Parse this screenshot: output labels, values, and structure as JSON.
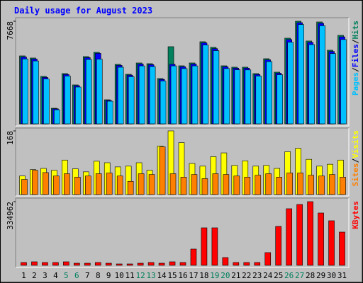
{
  "title": "Daily usage for August 2023",
  "legend_separator": "/",
  "chart_data": [
    {
      "type": "bar",
      "ylim": [
        0,
        7668
      ],
      "yticks": [
        7668
      ],
      "series": [
        {
          "name": "Hits",
          "color": "#00805c",
          "values": [
            5078,
            4920,
            3544,
            1164,
            3756,
            2910,
            5026,
            5343,
            1799,
            4444,
            3703,
            4549,
            4497,
            3386,
            5766,
            4338,
            4549,
            6137,
            5713,
            4338,
            4232,
            4232,
            3756,
            4867,
            3862,
            6401,
            7668,
            6190,
            7616,
            5502,
            6612
          ]
        },
        {
          "name": "Files",
          "color": "#0000ff",
          "values": [
            4990,
            4840,
            3470,
            1120,
            3690,
            2850,
            4950,
            5270,
            1750,
            4370,
            3640,
            4470,
            4420,
            3320,
            4450,
            4260,
            4470,
            6050,
            5620,
            4260,
            4160,
            4160,
            3690,
            4780,
            3790,
            6300,
            7560,
            6090,
            7510,
            5410,
            6500
          ]
        },
        {
          "name": "Pages",
          "color": "#00c0ff",
          "values": [
            4850,
            4700,
            3350,
            1050,
            3570,
            2750,
            4810,
            4830,
            1690,
            4230,
            3520,
            4330,
            4280,
            3200,
            4330,
            4130,
            4330,
            5890,
            5470,
            4130,
            4040,
            4030,
            3570,
            4650,
            3670,
            6100,
            7420,
            5920,
            7330,
            5250,
            6300
          ]
        }
      ]
    },
    {
      "type": "bar",
      "ylim": [
        0,
        168
      ],
      "yticks": [
        168
      ],
      "series": [
        {
          "name": "Visits",
          "color": "#ffff00",
          "values": [
            49,
            66,
            69,
            64,
            91,
            68,
            60,
            88,
            84,
            73,
            75,
            84,
            64,
            128,
            168,
            137,
            82,
            75,
            100,
            110,
            77,
            89,
            75,
            77,
            69,
            113,
            122,
            93,
            75,
            80,
            91
          ]
        },
        {
          "name": "Sites",
          "color": "#ff8000",
          "values": [
            40,
            64,
            58,
            49,
            55,
            46,
            49,
            55,
            57,
            49,
            35,
            55,
            53,
            126,
            55,
            46,
            53,
            42,
            55,
            53,
            49,
            46,
            51,
            55,
            46,
            57,
            57,
            51,
            49,
            53,
            46
          ]
        }
      ]
    },
    {
      "type": "bar",
      "ylim": [
        0,
        334962
      ],
      "yticks": [
        334962
      ],
      "categories": [
        "1",
        "2",
        "3",
        "4",
        "5",
        "6",
        "7",
        "8",
        "9",
        "10",
        "11",
        "12",
        "13",
        "14",
        "15",
        "16",
        "17",
        "18",
        "19",
        "20",
        "21",
        "22",
        "23",
        "24",
        "25",
        "26",
        "27",
        "28",
        "29",
        "30",
        "31"
      ],
      "category_colors": [
        "#000000",
        "#000000",
        "#000000",
        "#000000",
        "#00805c",
        "#00805c",
        "#000000",
        "#000000",
        "#000000",
        "#000000",
        "#000000",
        "#00805c",
        "#00805c",
        "#000000",
        "#000000",
        "#000000",
        "#000000",
        "#000000",
        "#00805c",
        "#00805c",
        "#000000",
        "#000000",
        "#000000",
        "#000000",
        "#000000",
        "#00805c",
        "#00805c",
        "#000000",
        "#000000",
        "#000000",
        "#000000"
      ],
      "series": [
        {
          "name": "KBytes",
          "color": "#ff0000",
          "values": [
            14900,
            18600,
            14900,
            14900,
            18600,
            11200,
            11200,
            14900,
            11200,
            7400,
            7400,
            11200,
            14900,
            11200,
            18600,
            14900,
            85600,
            197300,
            197300,
            40900,
            14900,
            14900,
            14900,
            67000,
            204700,
            297800,
            320100,
            334962,
            275400,
            234500,
            174900
          ]
        }
      ]
    }
  ]
}
